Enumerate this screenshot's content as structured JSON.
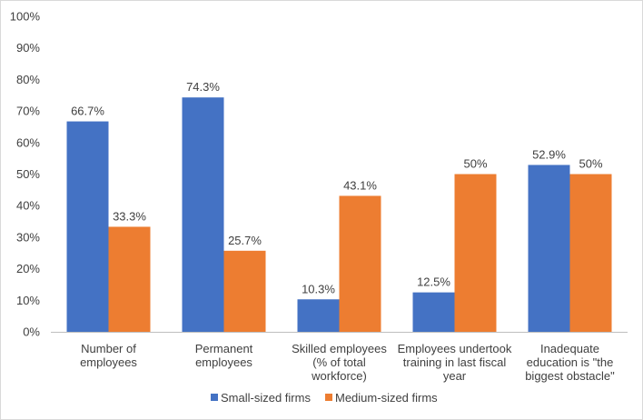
{
  "chart_data": {
    "type": "bar",
    "categories": [
      [
        "Number of",
        "employees"
      ],
      [
        "Permanent",
        "employees"
      ],
      [
        "Skilled employees",
        "(% of total",
        "workforce)"
      ],
      [
        "Employees undertook",
        "training in last fiscal",
        "year"
      ],
      [
        "Inadequate",
        "education is \"the",
        "biggest obstacle\""
      ]
    ],
    "series": [
      {
        "name": "Small-sized firms",
        "color": "#4472C4",
        "values": [
          66.7,
          74.3,
          10.3,
          12.5,
          52.9
        ],
        "labels": [
          "66.7%",
          "74.3%",
          "10.3%",
          "12.5%",
          "52.9%"
        ]
      },
      {
        "name": "Medium-sized firms",
        "color": "#ED7D31",
        "values": [
          33.3,
          25.7,
          43.1,
          50,
          50
        ],
        "labels": [
          "33.3%",
          "25.7%",
          "43.1%",
          "50%",
          "50%"
        ]
      }
    ],
    "ylim": [
      0,
      100
    ],
    "yticks": [
      "0%",
      "10%",
      "20%",
      "30%",
      "40%",
      "50%",
      "60%",
      "70%",
      "80%",
      "90%",
      "100%"
    ],
    "grid": false,
    "legend": "bottom-center"
  }
}
